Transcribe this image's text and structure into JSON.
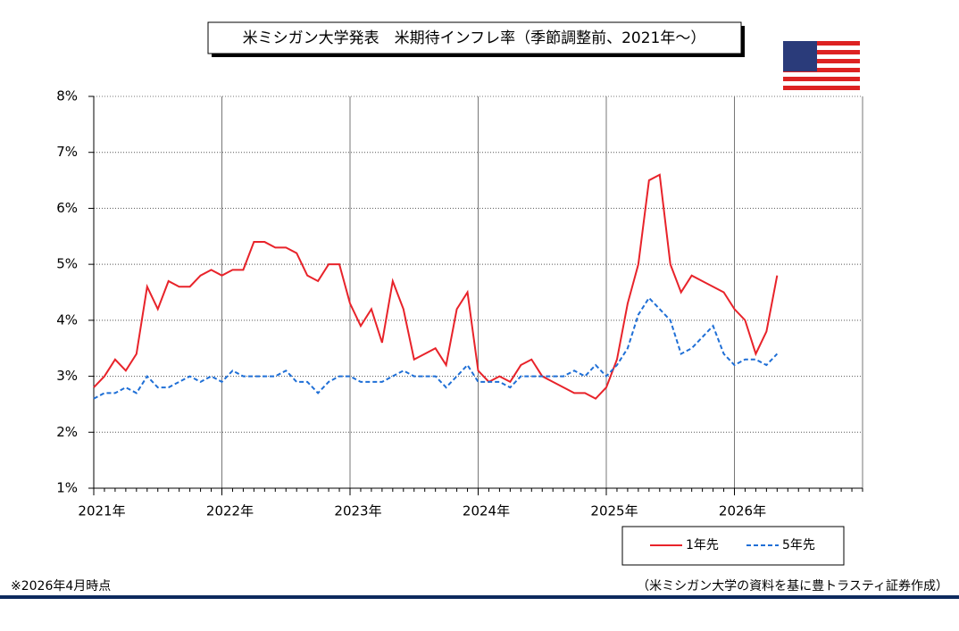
{
  "chart_data": {
    "type": "line",
    "title": "米ミシガン大学発表　米期待インフレ率（季節調整前、2021年～）",
    "categories": [
      "2021年",
      null,
      null,
      null,
      null,
      null,
      null,
      null,
      null,
      null,
      null,
      null,
      "2022年",
      null,
      null,
      null,
      null,
      null,
      null,
      null,
      null,
      null,
      null,
      null,
      "2023年",
      null,
      null,
      null,
      null,
      null,
      null,
      null,
      null,
      null,
      null,
      null,
      "2024年",
      null,
      null,
      null,
      null,
      null,
      null,
      null,
      null,
      null,
      null,
      null,
      "2025年",
      null,
      null,
      null,
      null,
      null,
      null,
      null,
      null,
      null,
      null,
      null,
      "2026年",
      null,
      null,
      null,
      null,
      null,
      null,
      null,
      null,
      null,
      null,
      null
    ],
    "series": [
      {
        "name": "1年先",
        "color": "#e8232a",
        "dash": false,
        "values": [
          2.8,
          3.0,
          3.3,
          3.1,
          3.4,
          4.6,
          4.2,
          4.7,
          4.6,
          4.6,
          4.8,
          4.9,
          4.8,
          4.9,
          4.9,
          5.4,
          5.4,
          5.3,
          5.3,
          5.2,
          4.8,
          4.7,
          5.0,
          5.0,
          4.3,
          3.9,
          4.2,
          3.6,
          4.7,
          4.2,
          3.3,
          3.4,
          3.5,
          3.2,
          4.2,
          4.5,
          3.1,
          2.9,
          3.0,
          2.9,
          3.2,
          3.3,
          3.0,
          2.9,
          2.8,
          2.7,
          2.7,
          2.6,
          2.8,
          3.3,
          4.3,
          5.0,
          6.5,
          6.6,
          5.0,
          4.5,
          4.8,
          4.7,
          4.6,
          4.5,
          4.2,
          4.0,
          3.4,
          3.8,
          4.8,
          null,
          null,
          null,
          null,
          null,
          null,
          null
        ]
      },
      {
        "name": "5年先",
        "color": "#1f6fd6",
        "dash": true,
        "values": [
          2.6,
          2.7,
          2.7,
          2.8,
          2.7,
          3.0,
          2.8,
          2.8,
          2.9,
          3.0,
          2.9,
          3.0,
          2.9,
          3.1,
          3.0,
          3.0,
          3.0,
          3.0,
          3.1,
          2.9,
          2.9,
          2.7,
          2.9,
          3.0,
          3.0,
          2.9,
          2.9,
          2.9,
          3.0,
          3.1,
          3.0,
          3.0,
          3.0,
          2.8,
          3.0,
          3.2,
          2.9,
          2.9,
          2.9,
          2.8,
          3.0,
          3.0,
          3.0,
          3.0,
          3.0,
          3.1,
          3.0,
          3.2,
          3.0,
          3.2,
          3.5,
          4.1,
          4.4,
          4.2,
          4.0,
          3.4,
          3.5,
          3.7,
          3.9,
          3.4,
          3.2,
          3.3,
          3.3,
          3.2,
          3.4,
          null,
          null,
          null,
          null,
          null,
          null,
          null
        ]
      }
    ],
    "ylim": [
      1,
      8
    ],
    "yticks": [
      {
        "value": 1,
        "label": "1%"
      },
      {
        "value": 2,
        "label": "2%"
      },
      {
        "value": 3,
        "label": "3%"
      },
      {
        "value": 4,
        "label": "4%"
      },
      {
        "value": 5,
        "label": "5%"
      },
      {
        "value": 6,
        "label": "6%"
      },
      {
        "value": 7,
        "label": "7%"
      },
      {
        "value": 8,
        "label": "8%"
      }
    ],
    "grid": true,
    "legend": "bottom-right",
    "note": "※2026年4月時点",
    "source": "（米ミシガン大学の資料を基に豊トラスティ証券作成）"
  }
}
